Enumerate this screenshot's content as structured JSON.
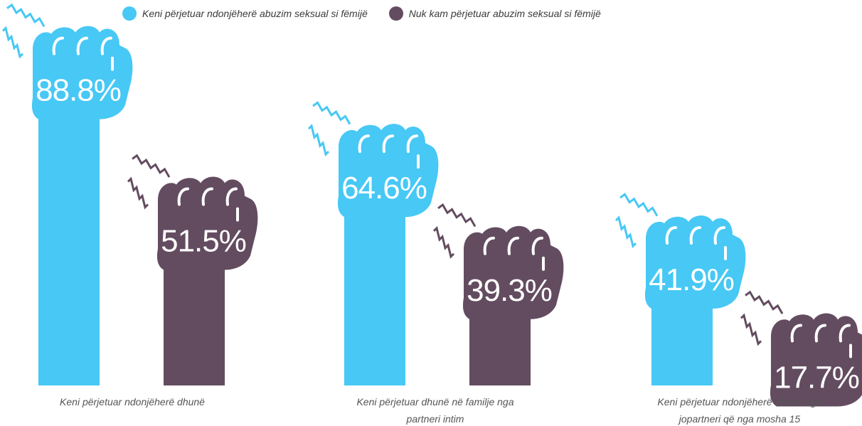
{
  "chart_data": {
    "type": "bar",
    "categories": [
      "Keni përjetuar ndonjëherë dhunë",
      "Keni përjetuar dhunë në familje nga partneri intim",
      "Keni përjetuar ndonjëherë dhunë nga jopartneri që nga mosha 15"
    ],
    "category_lines": [
      [
        "Keni përjetuar ndonjëherë dhunë"
      ],
      [
        "Keni përjetuar dhunë në familje nga",
        "partneri intim"
      ],
      [
        "Keni përjetuar ndonjëherë dhunë nga",
        "jopartneri që nga mosha 15"
      ]
    ],
    "series": [
      {
        "name": "Keni përjetuar ndonjëherë abuzim seksual si fëmijë",
        "color": "#47C8F5",
        "values": [
          88.8,
          64.6,
          41.9
        ],
        "labels": [
          "88.8%",
          "64.6%",
          "41.9%"
        ]
      },
      {
        "name": "Nuk kam përjetuar abuzim seksual si fëmijë",
        "color": "#634C60",
        "values": [
          51.5,
          39.3,
          17.7
        ],
        "labels": [
          "51.5%",
          "39.3%",
          "17.7%"
        ]
      }
    ],
    "unit": "%",
    "bar_style": "raised fist with burst mark",
    "legend_position": "top",
    "grid": false,
    "axes_visible": false
  }
}
